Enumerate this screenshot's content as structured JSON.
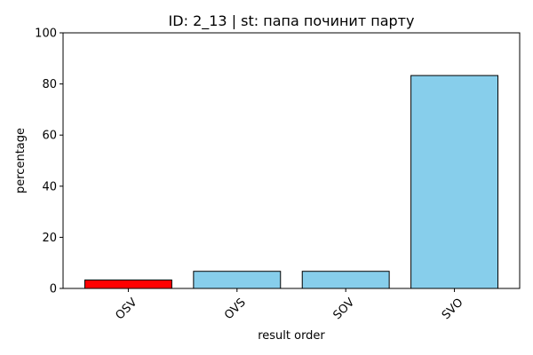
{
  "chart_data": {
    "type": "bar",
    "title": "ID: 2_13 | st: папа починит парту",
    "xlabel": "result order",
    "ylabel": "percentage",
    "categories": [
      "OSV",
      "OVS",
      "SOV",
      "SVO"
    ],
    "values": [
      3.3,
      6.7,
      6.7,
      83.3
    ],
    "bar_colors": [
      "#ff0000",
      "#87ceeb",
      "#87ceeb",
      "#87ceeb"
    ],
    "edge_color": "#000000",
    "ylim": [
      0,
      100
    ],
    "yticks": [
      0,
      20,
      40,
      60,
      80,
      100
    ],
    "grid": false,
    "legend": "none",
    "xtick_rotation": 45
  }
}
